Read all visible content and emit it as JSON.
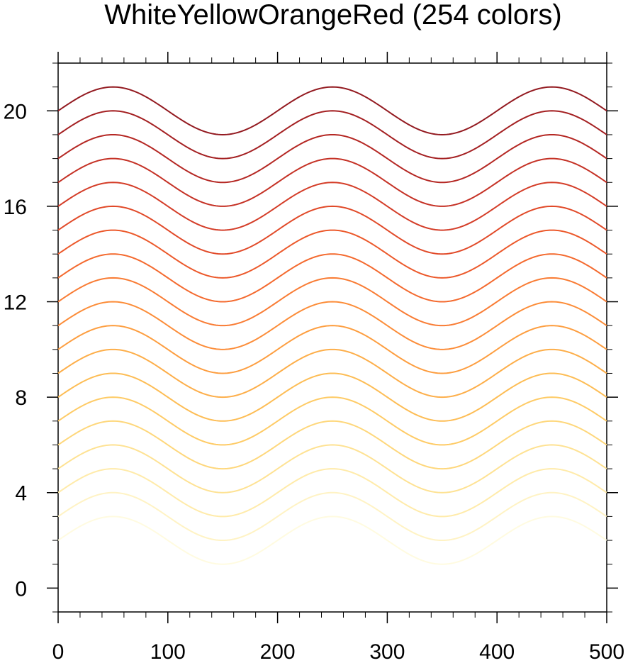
{
  "chart_data": {
    "type": "line",
    "title": "WhiteYellowOrangeRed (254 colors)",
    "xlabel": "",
    "ylabel": "",
    "xlim": [
      0,
      500
    ],
    "ylim": [
      -1,
      22
    ],
    "x_ticks": [
      0,
      100,
      200,
      300,
      400,
      500
    ],
    "y_ticks": [
      0,
      4,
      8,
      12,
      16,
      20
    ],
    "x_tick_labels": [
      "0",
      "100",
      "200",
      "300",
      "400",
      "500"
    ],
    "y_tick_labels": [
      "0",
      "4",
      "8",
      "12",
      "16",
      "20"
    ],
    "x_minor_step": 20,
    "y_minor_step": 1,
    "grid": false,
    "function": "y = offset + sin(2*pi*x/200)",
    "series": [
      {
        "offset": 2,
        "color": "#fffbe0"
      },
      {
        "offset": 3,
        "color": "#fff3c4"
      },
      {
        "offset": 4,
        "color": "#ffebaa"
      },
      {
        "offset": 5,
        "color": "#fee293"
      },
      {
        "offset": 6,
        "color": "#fed77b"
      },
      {
        "offset": 7,
        "color": "#fecb66"
      },
      {
        "offset": 8,
        "color": "#fdbd55"
      },
      {
        "offset": 9,
        "color": "#fdae49"
      },
      {
        "offset": 10,
        "color": "#fd9e40"
      },
      {
        "offset": 11,
        "color": "#fc8d39"
      },
      {
        "offset": 12,
        "color": "#f97c34"
      },
      {
        "offset": 13,
        "color": "#f46a2f"
      },
      {
        "offset": 14,
        "color": "#ec592b"
      },
      {
        "offset": 15,
        "color": "#e14a29"
      },
      {
        "offset": 16,
        "color": "#d43d28"
      },
      {
        "offset": 17,
        "color": "#c53226"
      },
      {
        "offset": 18,
        "color": "#b52824"
      },
      {
        "offset": 19,
        "color": "#a42022"
      },
      {
        "offset": 20,
        "color": "#931a20"
      }
    ]
  }
}
